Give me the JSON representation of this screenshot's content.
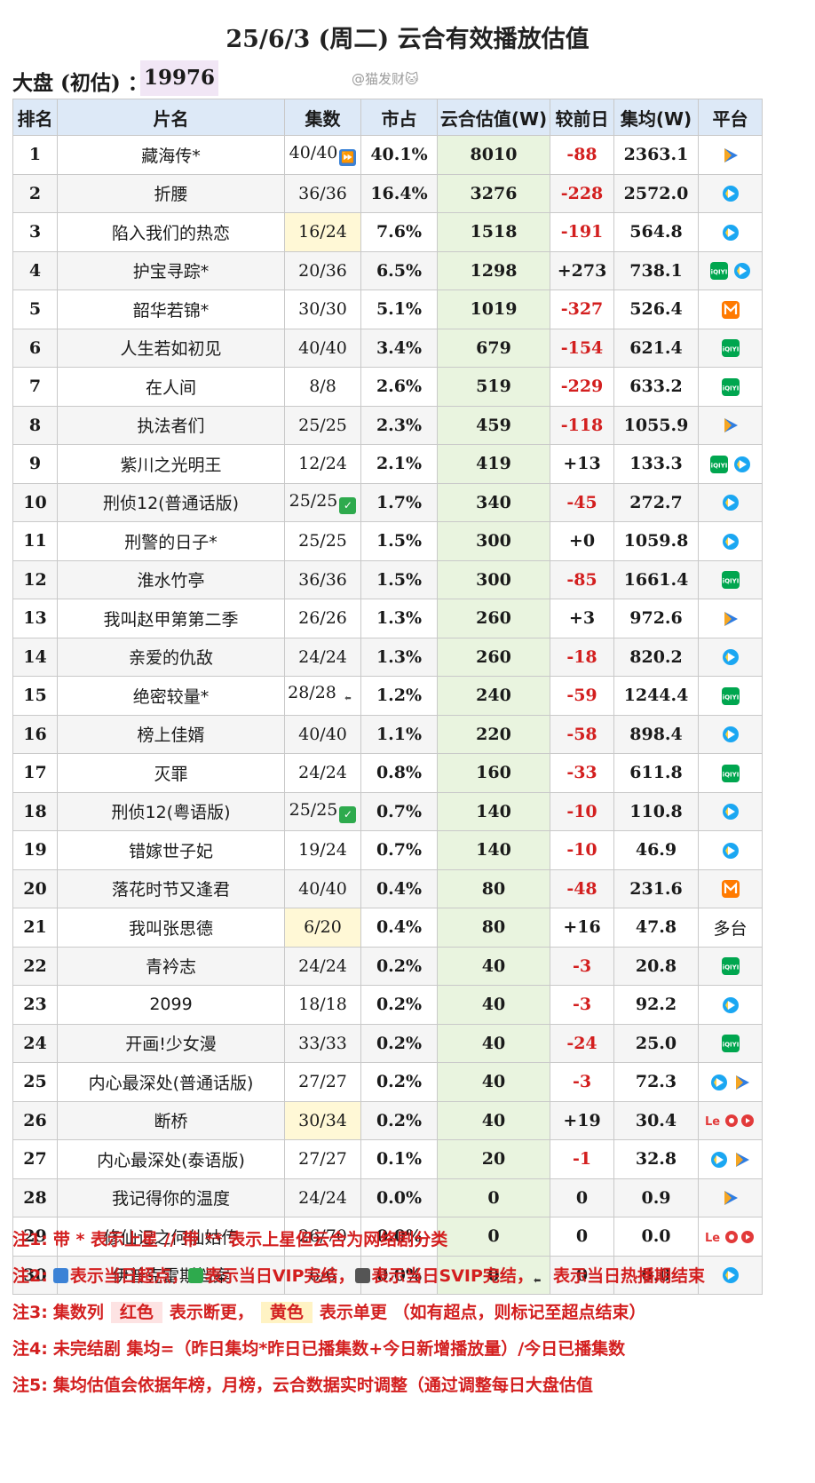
{
  "title": "25/6/3 (周二) 云合有效播放估值",
  "dapan": {
    "label": "大盘 (初估) ：",
    "value": "19976"
  },
  "watermark": "@猫发财🐱",
  "headers": {
    "rank": "排名",
    "name": "片名",
    "episodes": "集数",
    "share": "市占",
    "value": "云合估值(W)",
    "change": "较前日",
    "avg": "集均(W)",
    "platform": "平台"
  },
  "platform_colors": {
    "tencent": "#2f7de1",
    "iqiyi": "#00a64f",
    "youku": "#1ba7f2",
    "mango": "#ff7a00",
    "letv": "#e23a3a"
  },
  "rows": [
    {
      "rank": "1",
      "name": "藏海传*",
      "episodes": "40/40",
      "mark": "ff",
      "share": "40.1%",
      "value": "8010",
      "change": "-88",
      "avg": "2363.1",
      "platforms": [
        "tencent"
      ]
    },
    {
      "rank": "2",
      "name": "折腰",
      "episodes": "36/36",
      "share": "16.4%",
      "value": "3276",
      "change": "-228",
      "avg": "2572.0",
      "platforms": [
        "youku"
      ]
    },
    {
      "rank": "3",
      "name": "陷入我们的热恋",
      "episodes": "16/24",
      "ep_hl": "yellow",
      "share": "7.6%",
      "value": "1518",
      "change": "-191",
      "avg": "564.8",
      "platforms": [
        "youku"
      ]
    },
    {
      "rank": "4",
      "name": "护宝寻踪*",
      "episodes": "20/36",
      "share": "6.5%",
      "value": "1298",
      "change": "+273",
      "avg": "738.1",
      "platforms": [
        "iqiyi",
        "youku"
      ]
    },
    {
      "rank": "5",
      "name": "韶华若锦*",
      "episodes": "30/30",
      "share": "5.1%",
      "value": "1019",
      "change": "-327",
      "avg": "526.4",
      "platforms": [
        "mango"
      ]
    },
    {
      "rank": "6",
      "name": "人生若如初见",
      "episodes": "40/40",
      "share": "3.4%",
      "value": "679",
      "change": "-154",
      "avg": "621.4",
      "platforms": [
        "iqiyi"
      ]
    },
    {
      "rank": "7",
      "name": "在人间",
      "episodes": "8/8",
      "share": "2.6%",
      "value": "519",
      "change": "-229",
      "avg": "633.2",
      "platforms": [
        "iqiyi"
      ]
    },
    {
      "rank": "8",
      "name": "执法者们",
      "episodes": "25/25",
      "share": "2.3%",
      "value": "459",
      "change": "-118",
      "avg": "1055.9",
      "platforms": [
        "tencent"
      ]
    },
    {
      "rank": "9",
      "name": "紫川之光明王",
      "episodes": "12/24",
      "share": "2.1%",
      "value": "419",
      "change": "+13",
      "avg": "133.3",
      "platforms": [
        "iqiyi",
        "youku"
      ]
    },
    {
      "rank": "10",
      "name": "刑侦12(普通话版)",
      "episodes": "25/25",
      "mark": "check",
      "share": "1.7%",
      "value": "340",
      "change": "-45",
      "avg": "272.7",
      "platforms": [
        "youku"
      ]
    },
    {
      "rank": "11",
      "name": "刑警的日子*",
      "episodes": "25/25",
      "share": "1.5%",
      "value": "300",
      "change": "+0",
      "avg": "1059.8",
      "platforms": [
        "youku"
      ]
    },
    {
      "rank": "12",
      "name": "淮水竹亭",
      "episodes": "36/36",
      "share": "1.5%",
      "value": "300",
      "change": "-85",
      "avg": "1661.4",
      "platforms": [
        "iqiyi"
      ]
    },
    {
      "rank": "13",
      "name": "我叫赵甲第第二季",
      "episodes": "26/26",
      "share": "1.3%",
      "value": "260",
      "change": "+3",
      "avg": "972.6",
      "platforms": [
        "tencent"
      ]
    },
    {
      "rank": "14",
      "name": "亲爱的仇敌",
      "episodes": "24/24",
      "share": "1.3%",
      "value": "260",
      "change": "-18",
      "avg": "820.2",
      "platforms": [
        "youku"
      ]
    },
    {
      "rank": "15",
      "name": "绝密较量*",
      "episodes": "28/28",
      "mark": "end",
      "share": "1.2%",
      "value": "240",
      "change": "-59",
      "avg": "1244.4",
      "platforms": [
        "iqiyi"
      ]
    },
    {
      "rank": "16",
      "name": "榜上佳婿",
      "episodes": "40/40",
      "share": "1.1%",
      "value": "220",
      "change": "-58",
      "avg": "898.4",
      "platforms": [
        "youku"
      ]
    },
    {
      "rank": "17",
      "name": "灭罪",
      "episodes": "24/24",
      "share": "0.8%",
      "value": "160",
      "change": "-33",
      "avg": "611.8",
      "platforms": [
        "iqiyi"
      ]
    },
    {
      "rank": "18",
      "name": "刑侦12(粤语版)",
      "episodes": "25/25",
      "mark": "check",
      "share": "0.7%",
      "value": "140",
      "change": "-10",
      "avg": "110.8",
      "platforms": [
        "youku"
      ]
    },
    {
      "rank": "19",
      "name": "错嫁世子妃",
      "episodes": "19/24",
      "share": "0.7%",
      "value": "140",
      "change": "-10",
      "avg": "46.9",
      "platforms": [
        "youku"
      ]
    },
    {
      "rank": "20",
      "name": "落花时节又逢君",
      "episodes": "40/40",
      "share": "0.4%",
      "value": "80",
      "change": "-48",
      "avg": "231.6",
      "platforms": [
        "mango"
      ]
    },
    {
      "rank": "21",
      "name": "我叫张思德",
      "episodes": "6/20",
      "ep_hl": "yellow",
      "share": "0.4%",
      "value": "80",
      "change": "+16",
      "avg": "47.8",
      "platforms_text": "多台"
    },
    {
      "rank": "22",
      "name": "青衿志",
      "episodes": "24/24",
      "share": "0.2%",
      "value": "40",
      "change": "-3",
      "avg": "20.8",
      "platforms": [
        "iqiyi"
      ]
    },
    {
      "rank": "23",
      "name": "2099",
      "episodes": "18/18",
      "share": "0.2%",
      "value": "40",
      "change": "-3",
      "avg": "92.2",
      "platforms": [
        "youku"
      ]
    },
    {
      "rank": "24",
      "name": "开画!少女漫",
      "episodes": "33/33",
      "share": "0.2%",
      "value": "40",
      "change": "-24",
      "avg": "25.0",
      "platforms": [
        "iqiyi"
      ]
    },
    {
      "rank": "25",
      "name": "内心最深处(普通话版)",
      "episodes": "27/27",
      "share": "0.2%",
      "value": "40",
      "change": "-3",
      "avg": "72.3",
      "platforms": [
        "youku",
        "tencent"
      ]
    },
    {
      "rank": "26",
      "name": "断桥",
      "episodes": "30/34",
      "ep_hl": "yellow",
      "share": "0.2%",
      "value": "40",
      "change": "+19",
      "avg": "30.4",
      "platforms": [
        "letv"
      ]
    },
    {
      "rank": "27",
      "name": "内心最深处(泰语版)",
      "episodes": "27/27",
      "share": "0.1%",
      "value": "20",
      "change": "-1",
      "avg": "32.8",
      "platforms": [
        "youku",
        "tencent"
      ]
    },
    {
      "rank": "28",
      "name": "我记得你的温度",
      "episodes": "24/24",
      "share": "0.0%",
      "value": "0",
      "change": "0",
      "avg": "0.9",
      "platforms": [
        "tencent"
      ]
    },
    {
      "rank": "29",
      "name": "修仙记之何仙姑传",
      "episodes": "26/70",
      "share": "0.0%",
      "value": "0",
      "change": "0",
      "avg": "0.0",
      "platforms": [
        "letv"
      ]
    },
    {
      "rank": "30",
      "name": "伊普克雷斯档案",
      "episodes": "6/6",
      "share": "0.0%",
      "value": "0",
      "change": "0",
      "avg": "0.0",
      "platforms": [
        "youku"
      ]
    }
  ],
  "notes": {
    "n1": {
      "label": "注1:",
      "text": "带 * 表示上星 // 带 ** 表示上星但云合为网络剧分类"
    },
    "n2": {
      "label": "注2:",
      "a": "表示当日超点，",
      "b": "表示当日VIP完结，",
      "c": "表示当日SVIP完结，",
      "d": "表示当日热播期结束"
    },
    "n3": {
      "label": "注3:",
      "a": "集数列",
      "red": "红色",
      "b": "表示断更，",
      "yellow": "黄色",
      "c": "表示单更 （如有超点，则标记至超点结束）"
    },
    "n4": {
      "label": "注4:",
      "text": "未完结剧 集均=（昨日集均*昨日已播集数+今日新增播放量）/今日已播集数"
    },
    "n5": {
      "label": "注5:",
      "text": "集均估值会依据年榜，月榜，云合数据实时调整（通过调整每日大盘估值"
    }
  }
}
